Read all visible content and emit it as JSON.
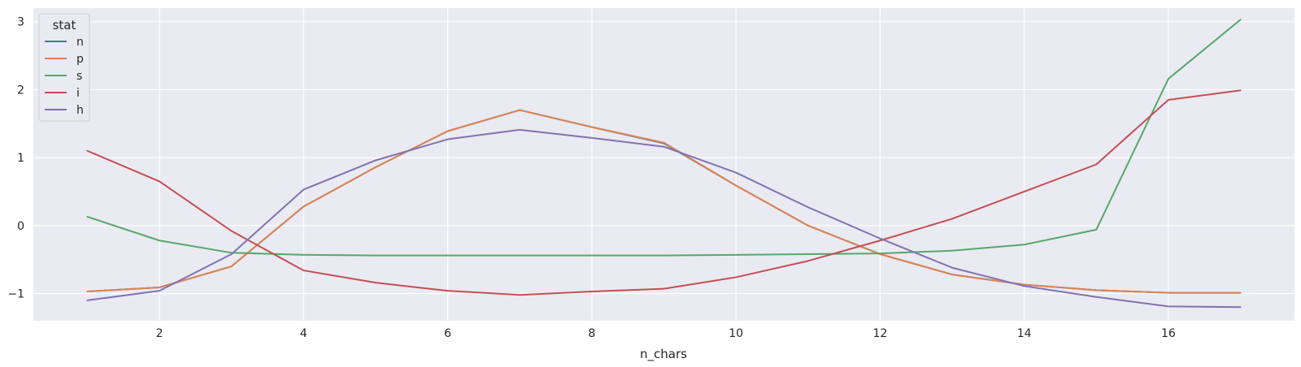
{
  "chart_data": {
    "type": "line",
    "xlabel": "n_chars",
    "ylabel": "",
    "xlim": [
      0.25,
      17.75
    ],
    "ylim": [
      -1.4,
      3.2
    ],
    "xticks": [
      2,
      4,
      6,
      8,
      10,
      12,
      14,
      16
    ],
    "yticks": [
      -1,
      0,
      1,
      2,
      3
    ],
    "xtick_labels": [
      "2",
      "4",
      "6",
      "8",
      "10",
      "12",
      "14",
      "16"
    ],
    "ytick_labels": [
      "−1",
      "0",
      "1",
      "2",
      "3"
    ],
    "grid": true,
    "legend": {
      "title": "stat",
      "placement": "top-left"
    },
    "x": [
      1,
      2,
      3,
      4,
      5,
      6,
      7,
      8,
      9,
      10,
      11,
      12,
      13,
      14,
      15,
      16,
      17
    ],
    "series": [
      {
        "name": "n",
        "color": "#4c72b0",
        "values": [
          -0.97,
          -0.91,
          -0.6,
          0.28,
          0.86,
          1.39,
          1.7,
          1.45,
          1.21,
          0.59,
          0.0,
          -0.42,
          -0.72,
          -0.87,
          -0.95,
          -0.99,
          -0.99
        ]
      },
      {
        "name": "p",
        "color": "#dd8452",
        "values": [
          -0.97,
          -0.91,
          -0.6,
          0.28,
          0.86,
          1.39,
          1.7,
          1.45,
          1.22,
          0.59,
          0.0,
          -0.42,
          -0.72,
          -0.87,
          -0.95,
          -0.99,
          -0.99
        ]
      },
      {
        "name": "s",
        "color": "#55a868",
        "values": [
          0.13,
          -0.22,
          -0.4,
          -0.43,
          -0.44,
          -0.44,
          -0.44,
          -0.44,
          -0.44,
          -0.43,
          -0.42,
          -0.41,
          -0.37,
          -0.28,
          -0.06,
          2.16,
          3.03
        ]
      },
      {
        "name": "i",
        "color": "#c44e52",
        "values": [
          1.1,
          0.65,
          -0.08,
          -0.66,
          -0.84,
          -0.96,
          -1.02,
          -0.97,
          -0.93,
          -0.76,
          -0.52,
          -0.22,
          0.1,
          0.5,
          0.9,
          1.85,
          1.99
        ]
      },
      {
        "name": "h",
        "color": "#8172b3",
        "values": [
          -1.1,
          -0.96,
          -0.42,
          0.53,
          0.96,
          1.27,
          1.41,
          1.29,
          1.16,
          0.78,
          0.27,
          -0.19,
          -0.62,
          -0.89,
          -1.05,
          -1.19,
          -1.2
        ]
      }
    ]
  }
}
